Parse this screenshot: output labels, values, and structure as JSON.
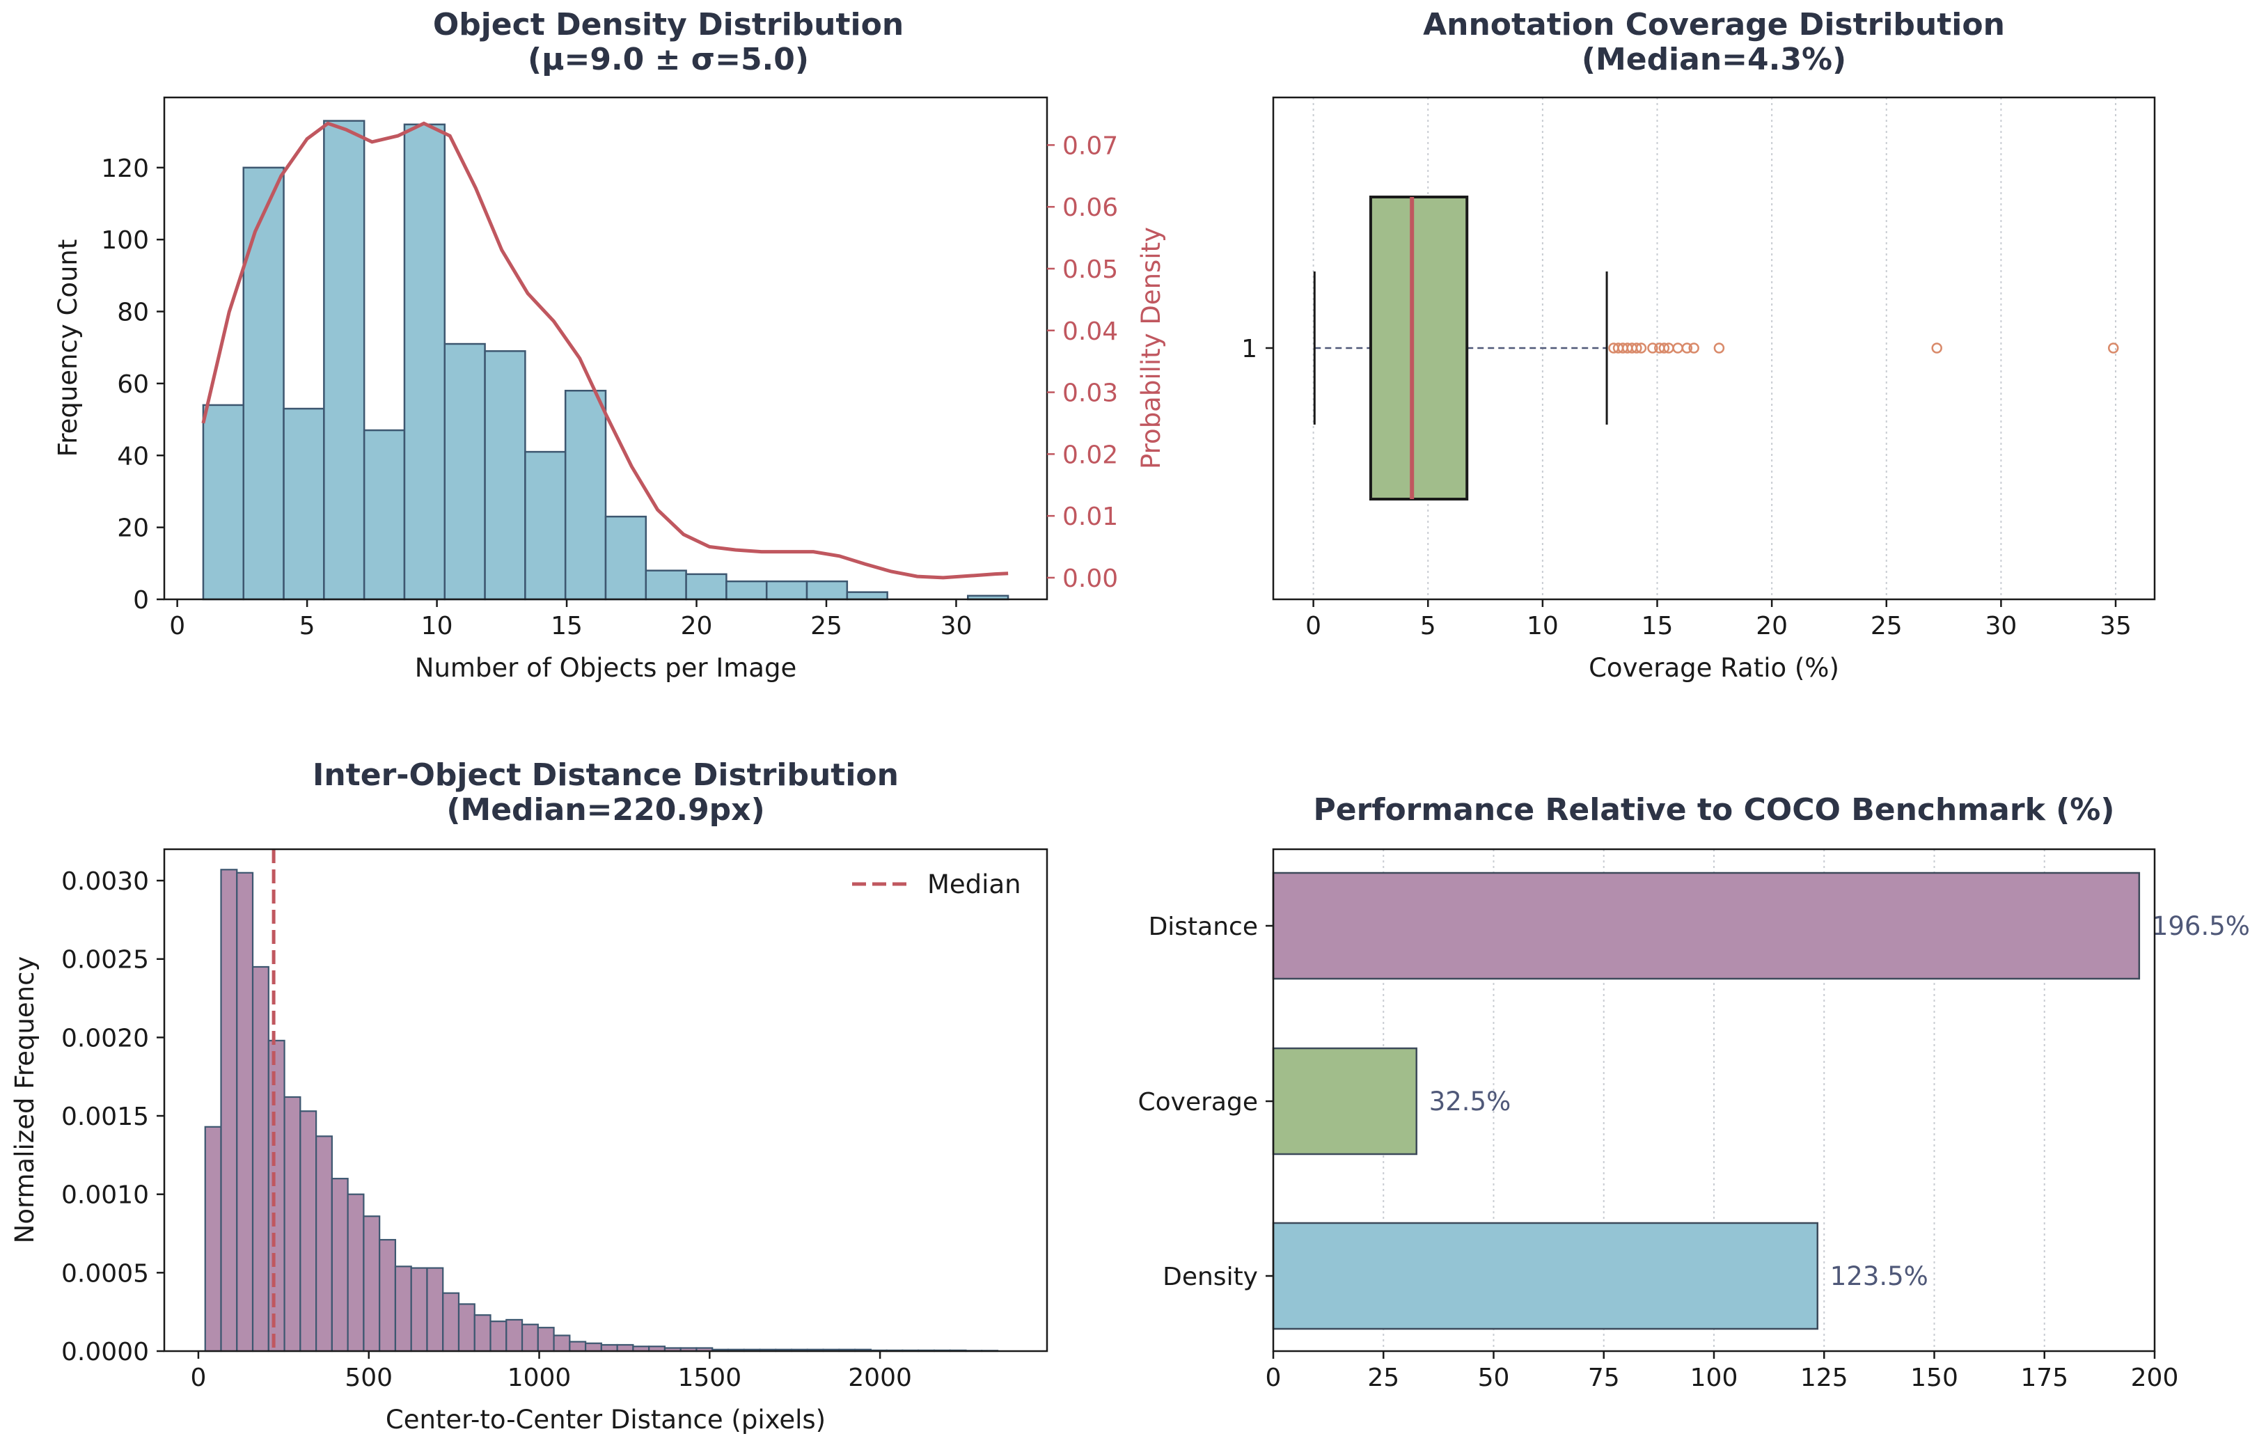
{
  "figure": {
    "colors": {
      "density": "#94c4d4",
      "density_edge": "#3d5770",
      "kde": "#c0575f",
      "coverage_box": "#a1bd8b",
      "median_line": "#c0575f",
      "flier": "#d98a6a",
      "distance": "#b38ead",
      "title": "#2d3446"
    }
  },
  "chart_data": [
    {
      "id": "density",
      "type": "bar",
      "title_line1": "Object Density Distribution",
      "title_line2": "(μ=9.0 ± σ=5.0)",
      "xlabel": "Number of Objects per Image",
      "ylabel": "Frequency Count",
      "ylabel2": "Probability Density",
      "xlim": [
        -0.5,
        33.5
      ],
      "ylim": [
        0,
        139.5
      ],
      "y2lim": [
        -0.0035,
        0.0777
      ],
      "xticks": [
        "0",
        "5",
        "10",
        "15",
        "20",
        "25",
        "30"
      ],
      "xtick_values": [
        0,
        5,
        10,
        15,
        20,
        25,
        30
      ],
      "yticks": [
        "0",
        "20",
        "40",
        "60",
        "80",
        "100",
        "120"
      ],
      "ytick_values": [
        0,
        20,
        40,
        60,
        80,
        100,
        120
      ],
      "y2ticks": [
        "0.00",
        "0.01",
        "0.02",
        "0.03",
        "0.04",
        "0.05",
        "0.06",
        "0.07"
      ],
      "y2tick_values": [
        0,
        0.01,
        0.02,
        0.03,
        0.04,
        0.05,
        0.06,
        0.07
      ],
      "bin_start": 1.0,
      "bin_width": 1.55,
      "counts": [
        54,
        120,
        53,
        133,
        47,
        132,
        71,
        69,
        41,
        58,
        23,
        8,
        7,
        5,
        5,
        5,
        2,
        0,
        0,
        1
      ],
      "kde_x": [
        1,
        2,
        3,
        4,
        5,
        5.8,
        6.5,
        7.5,
        8.5,
        9.5,
        10.5,
        11.5,
        12.5,
        13.5,
        14.5,
        15.5,
        16.5,
        17.5,
        18.5,
        19.5,
        20.5,
        21.5,
        22.5,
        23.5,
        24.5,
        25.5,
        26.5,
        27.5,
        28.5,
        29.5,
        30.5,
        31.5,
        32
      ],
      "kde_y": [
        0.025,
        0.043,
        0.056,
        0.065,
        0.071,
        0.0735,
        0.0725,
        0.0705,
        0.0715,
        0.0735,
        0.0715,
        0.063,
        0.053,
        0.046,
        0.0415,
        0.0355,
        0.0265,
        0.018,
        0.011,
        0.007,
        0.005,
        0.0045,
        0.0042,
        0.0042,
        0.0042,
        0.0035,
        0.0022,
        0.001,
        0.0002,
        0.0,
        0.0003,
        0.0006,
        0.0007
      ]
    },
    {
      "id": "coverage",
      "type": "box",
      "title_line1": "Annotation Coverage Distribution",
      "title_line2": "(Median=4.3%)",
      "xlabel": "Coverage Ratio (%)",
      "xlim": [
        -1.75,
        36.7
      ],
      "xticks": [
        "0",
        "5",
        "10",
        "15",
        "20",
        "25",
        "30",
        "35"
      ],
      "xtick_values": [
        0,
        5,
        10,
        15,
        20,
        25,
        30,
        35
      ],
      "ytick": "1",
      "whisker_low": 0.05,
      "q1": 2.5,
      "median": 4.3,
      "q3": 6.7,
      "whisker_high": 12.8,
      "fliers": [
        13.1,
        13.3,
        13.5,
        13.7,
        13.9,
        14.1,
        14.3,
        14.8,
        15.1,
        15.3,
        15.5,
        15.9,
        16.3,
        16.6,
        17.7,
        27.2,
        34.9
      ]
    },
    {
      "id": "distance",
      "type": "bar",
      "title_line1": "Inter-Object Distance Distribution",
      "title_line2": "(Median=220.9px)",
      "xlabel": "Center-to-Center Distance (pixels)",
      "ylabel": "Normalized Frequency",
      "legend": "Median",
      "median": 220.9,
      "xlim": [
        -100,
        2490
      ],
      "ylim": [
        0,
        0.0032
      ],
      "xticks": [
        "0",
        "500",
        "1000",
        "1500",
        "2000"
      ],
      "xtick_values": [
        0,
        500,
        1000,
        1500,
        2000
      ],
      "yticks": [
        "0.0000",
        "0.0005",
        "0.0010",
        "0.0015",
        "0.0020",
        "0.0025",
        "0.0030"
      ],
      "ytick_values": [
        0,
        0.0005,
        0.001,
        0.0015,
        0.002,
        0.0025,
        0.003
      ],
      "bin_start": 20,
      "bin_width": 46.5,
      "density": [
        0.00143,
        0.00307,
        0.00305,
        0.00245,
        0.00198,
        0.00162,
        0.00153,
        0.00137,
        0.0011,
        0.001,
        0.00086,
        0.00071,
        0.00054,
        0.00053,
        0.00053,
        0.00037,
        0.0003,
        0.00023,
        0.00019,
        0.0002,
        0.00017,
        0.00015,
        0.0001,
        6e-05,
        5e-05,
        4e-05,
        4e-05,
        3e-05,
        3e-05,
        2e-05,
        2e-05,
        2e-05,
        1e-05,
        1e-05,
        1e-05,
        1e-05,
        1e-05,
        1e-05,
        1e-05,
        1e-05,
        1e-05,
        1e-05,
        5e-06,
        5e-06,
        5e-06,
        5e-06,
        5e-06,
        5e-06,
        3e-06,
        3e-06
      ]
    },
    {
      "id": "coco",
      "type": "barh",
      "title": "Performance Relative to COCO Benchmark (%)",
      "xlim": [
        0,
        200
      ],
      "xticks": [
        "0",
        "25",
        "50",
        "75",
        "100",
        "125",
        "150",
        "175",
        "200"
      ],
      "xtick_values": [
        0,
        25,
        50,
        75,
        100,
        125,
        150,
        175,
        200
      ],
      "categories": [
        "Distance",
        "Coverage",
        "Density"
      ],
      "values": [
        196.5,
        32.5,
        123.5
      ],
      "value_labels": [
        "196.5%",
        "32.5%",
        "123.5%"
      ]
    }
  ]
}
